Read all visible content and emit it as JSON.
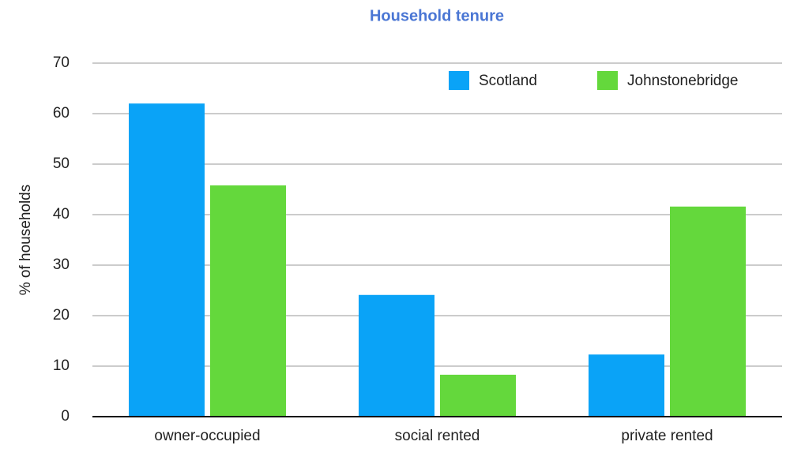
{
  "chart_data": {
    "type": "bar",
    "title": "Household tenure",
    "y_label": "% of households",
    "categories": [
      "owner-occupied",
      "social rented",
      "private rented"
    ],
    "series": [
      {
        "name": "Scotland",
        "color": "#0aa3f7",
        "values": [
          62,
          24.1,
          12.3
        ]
      },
      {
        "name": "Johnstonebridge",
        "color": "#64d83c",
        "values": [
          45.8,
          8.3,
          41.6
        ]
      }
    ],
    "ylim": [
      0,
      70
    ],
    "yticks": [
      0,
      10,
      20,
      30,
      40,
      50,
      60,
      70
    ],
    "grid": true,
    "legend": "top-right"
  }
}
